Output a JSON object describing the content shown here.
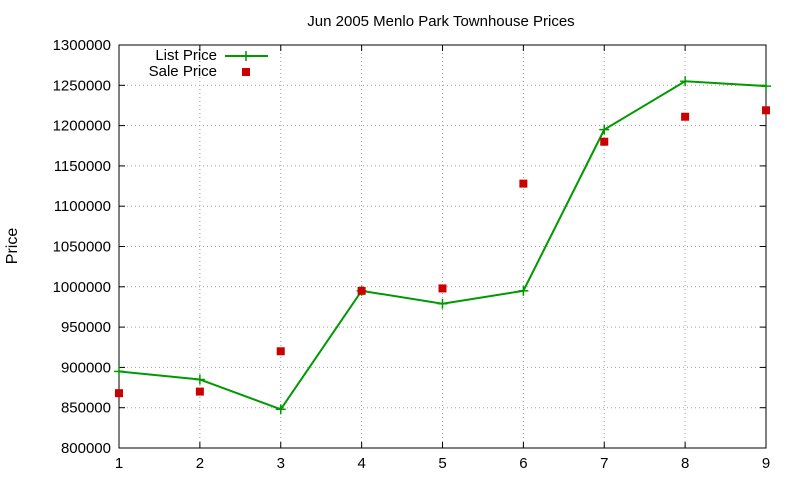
{
  "chart_data": {
    "type": "line",
    "title": "Jun 2005 Menlo Park Townhouse Prices",
    "xlabel": "",
    "ylabel": "Price",
    "x": [
      1,
      2,
      3,
      4,
      5,
      6,
      7,
      8,
      9
    ],
    "xlim": [
      1,
      9
    ],
    "ylim": [
      800000,
      1300000
    ],
    "xticks": [
      "1",
      "2",
      "3",
      "4",
      "5",
      "6",
      "7",
      "8",
      "9"
    ],
    "yticks": [
      "800000",
      "850000",
      "900000",
      "950000",
      "1000000",
      "1050000",
      "1100000",
      "1150000",
      "1200000",
      "1250000",
      "1300000"
    ],
    "grid": true,
    "legend_position": "top-left",
    "series": [
      {
        "name": "List Price",
        "style": "lines+points",
        "color": "#009900",
        "values": [
          895000,
          885000,
          848000,
          995000,
          979000,
          995000,
          1195000,
          1255000,
          1249000
        ]
      },
      {
        "name": "Sale Price",
        "style": "points",
        "color": "#cc0000",
        "values": [
          868000,
          870000,
          920000,
          995000,
          998000,
          1128000,
          1180000,
          1211000,
          1219000
        ]
      }
    ]
  }
}
